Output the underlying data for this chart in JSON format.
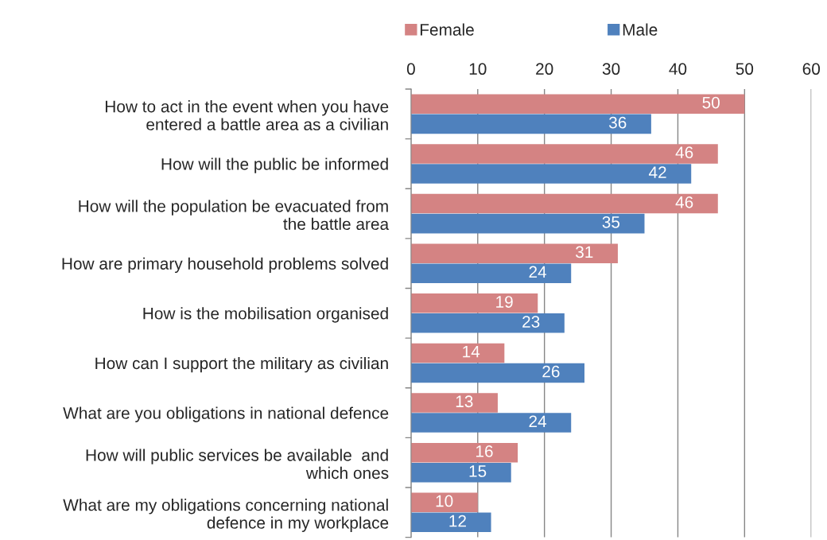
{
  "chart_data": {
    "type": "bar",
    "orientation": "horizontal",
    "categories": [
      "How to act in the event when you have\nentered a battle area as a civilian",
      "How will the public be informed",
      "How will the population be evacuated from\nthe battle area",
      "How are primary household problems solved",
      "How is the mobilisation organised",
      "How can I support the military as civilian",
      "What are you obligations in national defence",
      "How will public services be available  and\nwhich ones",
      "What are my obligations concerning national\ndefence in my workplace"
    ],
    "series": [
      {
        "name": "Female",
        "color": "#d48383",
        "values": [
          50,
          46,
          46,
          31,
          19,
          14,
          13,
          16,
          10
        ]
      },
      {
        "name": "Male",
        "color": "#4f81bd",
        "values": [
          36,
          42,
          35,
          24,
          23,
          26,
          24,
          15,
          12
        ]
      }
    ],
    "xlim": [
      0,
      60
    ],
    "xticks": [
      0,
      10,
      20,
      30,
      40,
      50,
      60
    ],
    "grid": "x",
    "legend": "top",
    "data_labels": true
  }
}
